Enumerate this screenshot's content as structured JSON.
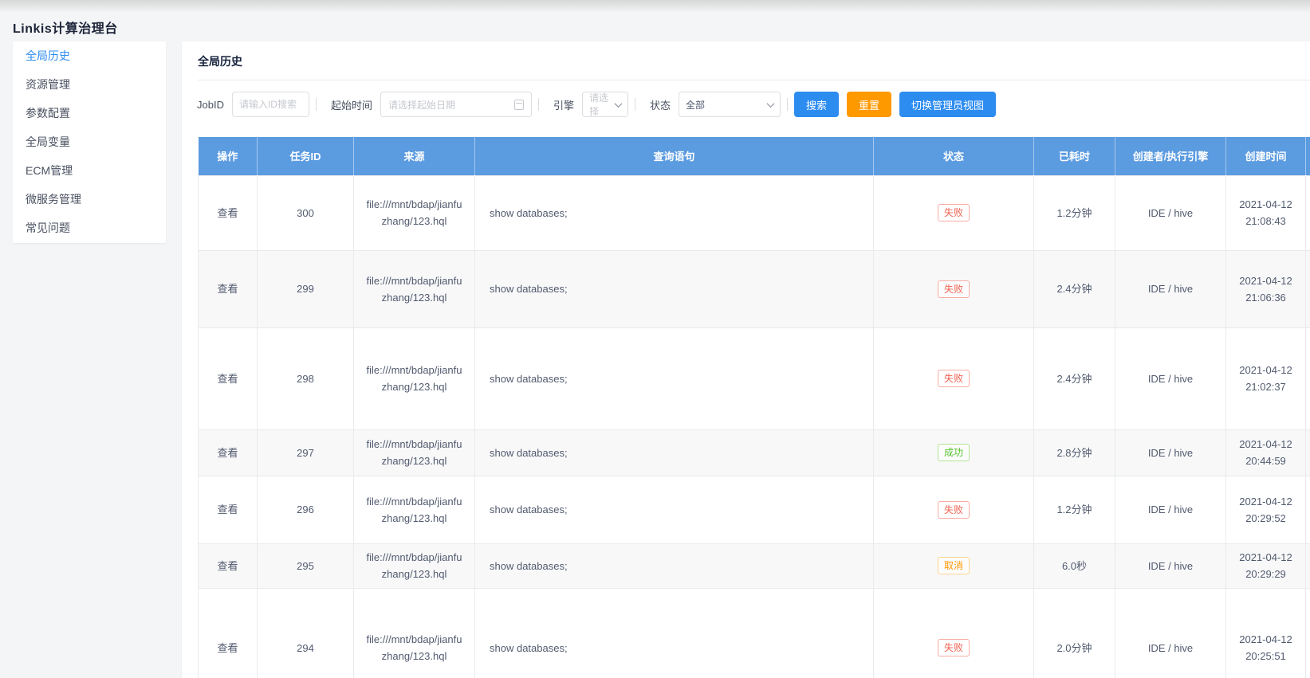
{
  "app": {
    "title": "Linkis计算治理台"
  },
  "sidebar": {
    "items": [
      {
        "label": "全局历史",
        "active": true
      },
      {
        "label": "资源管理",
        "active": false
      },
      {
        "label": "参数配置",
        "active": false
      },
      {
        "label": "全局变量",
        "active": false
      },
      {
        "label": "ECM管理",
        "active": false
      },
      {
        "label": "微服务管理",
        "active": false
      },
      {
        "label": "常见问题",
        "active": false
      }
    ]
  },
  "main": {
    "title": "全局历史",
    "filters": {
      "jobid_label": "JobID",
      "jobid_placeholder": "请输入ID搜索",
      "start_time_label": "起始时间",
      "start_time_placeholder": "请选择起始日期",
      "engine_label": "引擎",
      "engine_placeholder": "请选择",
      "status_label": "状态",
      "status_value": "全部",
      "search_button": "搜索",
      "reset_button": "重置",
      "admin_view_button": "切换管理员视图"
    },
    "table": {
      "columns": [
        "操作",
        "任务ID",
        "来源",
        "查询语句",
        "状态",
        "已耗时",
        "创建者/执行引擎",
        "创建时间"
      ],
      "rows": [
        {
          "action": "查看",
          "task_id": "300",
          "source": "file:///mnt/bdap/jianfuzhang/123.hql",
          "query": "show databases;",
          "status": "失败",
          "status_type": "failed",
          "elapsed": "1.2分钟",
          "creator": "IDE / hive",
          "created": "2021-04-12 21:08:43"
        },
        {
          "action": "查看",
          "task_id": "299",
          "source": "file:///mnt/bdap/jianfuzhang/123.hql",
          "query": "show databases;",
          "status": "失败",
          "status_type": "failed",
          "elapsed": "2.4分钟",
          "creator": "IDE / hive",
          "created": "2021-04-12 21:06:36"
        },
        {
          "action": "查看",
          "task_id": "298",
          "source": "file:///mnt/bdap/jianfuzhang/123.hql",
          "query": "show databases;",
          "status": "失败",
          "status_type": "failed",
          "elapsed": "2.4分钟",
          "creator": "IDE / hive",
          "created": "2021-04-12 21:02:37"
        },
        {
          "action": "查看",
          "task_id": "297",
          "source": "file:///mnt/bdap/jianfuzhang/123.hql",
          "query": "show databases;",
          "status": "成功",
          "status_type": "success",
          "elapsed": "2.8分钟",
          "creator": "IDE / hive",
          "created": "2021-04-12 20:44:59"
        },
        {
          "action": "查看",
          "task_id": "296",
          "source": "file:///mnt/bdap/jianfuzhang/123.hql",
          "query": "show databases;",
          "status": "失败",
          "status_type": "failed",
          "elapsed": "1.2分钟",
          "creator": "IDE / hive",
          "created": "2021-04-12 20:29:52"
        },
        {
          "action": "查看",
          "task_id": "295",
          "source": "file:///mnt/bdap/jianfuzhang/123.hql",
          "query": "show databases;",
          "status": "取消",
          "status_type": "cancelled",
          "elapsed": "6.0秒",
          "creator": "IDE / hive",
          "created": "2021-04-12 20:29:29"
        },
        {
          "action": "查看",
          "task_id": "294",
          "source": "file:///mnt/bdap/jianfuzhang/123.hql",
          "query": "show databases;",
          "status": "失败",
          "status_type": "failed",
          "elapsed": "2.0分钟",
          "creator": "IDE / hive",
          "created": "2021-04-12 20:25:51"
        }
      ]
    }
  },
  "colors": {
    "primary": "#2d8cf0",
    "warning_button": "#ff9900",
    "table_header": "#5b9be0",
    "status_failed": "#f16453",
    "status_success": "#57c22d",
    "status_cancelled": "#ff9900"
  }
}
